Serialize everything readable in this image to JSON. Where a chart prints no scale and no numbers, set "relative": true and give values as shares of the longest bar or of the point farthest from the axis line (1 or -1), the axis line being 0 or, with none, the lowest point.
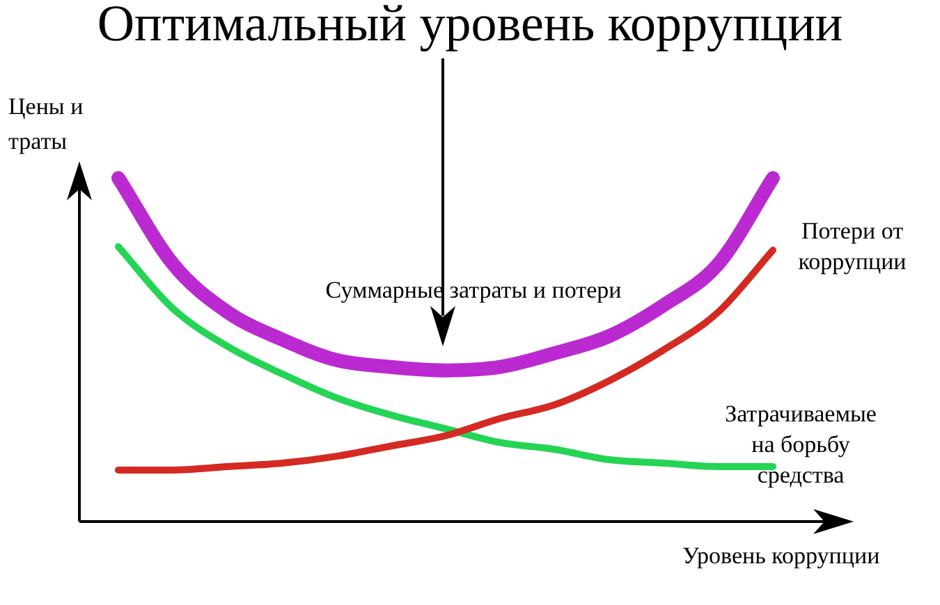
{
  "chart_data": {
    "type": "line",
    "title": "Оптимальный уровень коррупции",
    "xlabel": "Уровень коррупции",
    "ylabel": "Цены и траты",
    "relative": true,
    "marker": "none",
    "categories": [
      null,
      null,
      null,
      null,
      null,
      null,
      null,
      null,
      null,
      null,
      null,
      null,
      null
    ],
    "series": [
      {
        "name": "Суммарные затраты и потери",
        "color": "#bb2ad1",
        "values": [
          1,
          0.75,
          0.61,
          0.53,
          0.47,
          0.45,
          0.44,
          0.45,
          0.49,
          0.54,
          0.63,
          0.75,
          1
        ]
      },
      {
        "name": "Потери от коррупции",
        "color": "#d42a22",
        "values": [
          0.15,
          0.15,
          0.16,
          0.17,
          0.19,
          0.22,
          0.25,
          0.3,
          0.34,
          0.41,
          0.5,
          0.61,
          0.79
        ]
      },
      {
        "name": "Затрачиваемые на борьбу средства",
        "color": "#25d455",
        "values": [
          0.8,
          0.62,
          0.51,
          0.43,
          0.36,
          0.31,
          0.27,
          0.23,
          0.21,
          0.18,
          0.17,
          0.16,
          0.16
        ]
      }
    ]
  }
}
